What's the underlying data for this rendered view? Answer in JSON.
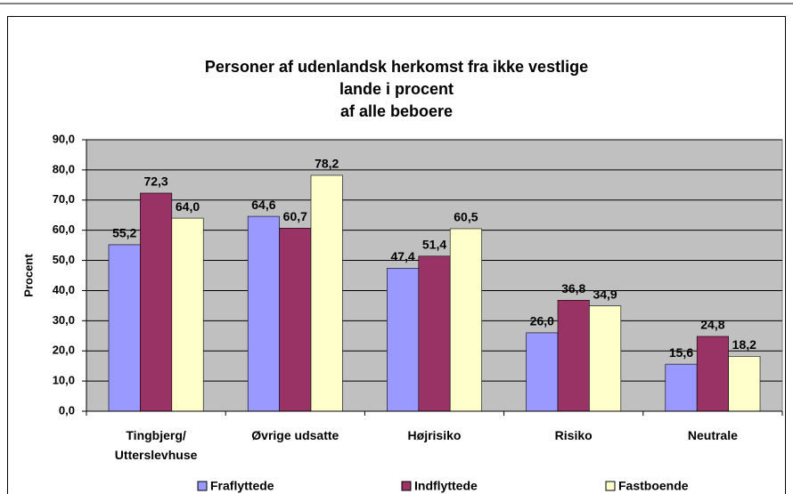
{
  "chart_data": {
    "type": "bar",
    "title": "Personer af udenlandsk herkomst fra ikke vestlige lande i procent\naf alle beboere",
    "y_label": "Procent",
    "categories": [
      "Tingbjerg/\nUtterslevhuse",
      "Øvrige udsatte",
      "Højrisiko",
      "Risiko",
      "Neutrale"
    ],
    "series": [
      {
        "name": "Fraflyttede",
        "color": "#9999ff",
        "values": [
          55.2,
          64.6,
          47.4,
          26.0,
          15.6
        ],
        "value_labels": [
          "55,2",
          "64,6",
          "47,4",
          "26,0",
          "15,6"
        ]
      },
      {
        "name": "Indflyttede",
        "color": "#993366",
        "values": [
          72.3,
          60.7,
          51.4,
          36.8,
          24.8
        ],
        "value_labels": [
          "72,3",
          "60,7",
          "51,4",
          "36,8",
          "24,8"
        ]
      },
      {
        "name": "Fastboende",
        "color": "#ffffcc",
        "values": [
          64.0,
          78.2,
          60.5,
          34.9,
          18.2
        ],
        "value_labels": [
          "64,0",
          "78,2",
          "60,5",
          "34,9",
          "18,2"
        ]
      }
    ],
    "ylim": [
      0,
      90
    ],
    "yticks": [
      {
        "value": 0,
        "label": "0,0"
      },
      {
        "value": 10,
        "label": "10,0"
      },
      {
        "value": 20,
        "label": "20,0"
      },
      {
        "value": 30,
        "label": "30,0"
      },
      {
        "value": 40,
        "label": "40,0"
      },
      {
        "value": 50,
        "label": "50,0"
      },
      {
        "value": 60,
        "label": "60,0"
      },
      {
        "value": 70,
        "label": "70,0"
      },
      {
        "value": 80,
        "label": "80,0"
      },
      {
        "value": 90,
        "label": "90,0"
      }
    ],
    "grid": true,
    "legend": "bottom",
    "plot_background": "#c0c0c0"
  }
}
